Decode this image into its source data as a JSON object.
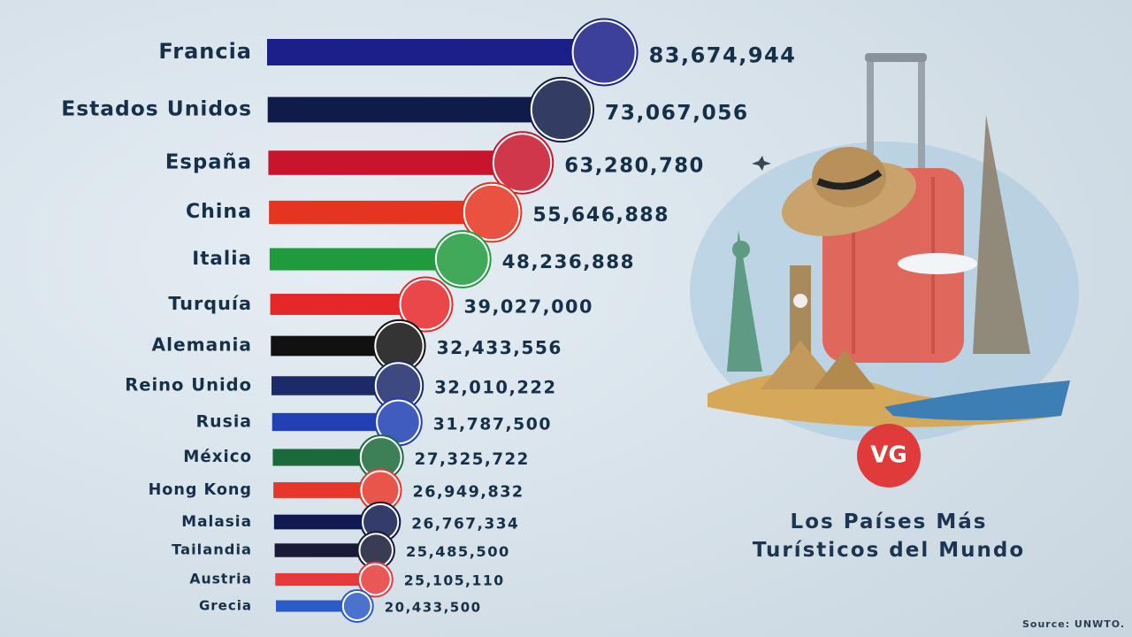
{
  "chart_data": {
    "type": "bar",
    "title": "Los Países Más Turísticos del Mundo",
    "categories": [
      "Francia",
      "Estados Unidos",
      "España",
      "China",
      "Italia",
      "Turquía",
      "Alemania",
      "Reino Unido",
      "Rusia",
      "México",
      "Hong Kong",
      "Malasia",
      "Tailandia",
      "Austria",
      "Grecia"
    ],
    "values": [
      83674944,
      73067056,
      63280780,
      55646888,
      48236888,
      39027000,
      32433556,
      32010222,
      31787500,
      27325722,
      26949832,
      26767334,
      25485500,
      25105110,
      20433500
    ],
    "value_labels": [
      "83,674,944",
      "73,067,056",
      "63,280,780",
      "55,646,888",
      "48,236,888",
      "39,027,000",
      "32,433,556",
      "32,010,222",
      "31,787,500",
      "27,325,722",
      "26,949,832",
      "26,767,334",
      "25,485,500",
      "25,105,110",
      "20,433,500"
    ],
    "colors": [
      "#1b1f8a",
      "#0f1b48",
      "#c8142c",
      "#e5341f",
      "#1f9a3d",
      "#e6272a",
      "#111111",
      "#1b2a6b",
      "#2040b4",
      "#1b6a3b",
      "#e6372b",
      "#111a50",
      "#181a38",
      "#e63a3a",
      "#2b5bc6"
    ],
    "logo": "VG",
    "source": "Source: UNWTO."
  }
}
